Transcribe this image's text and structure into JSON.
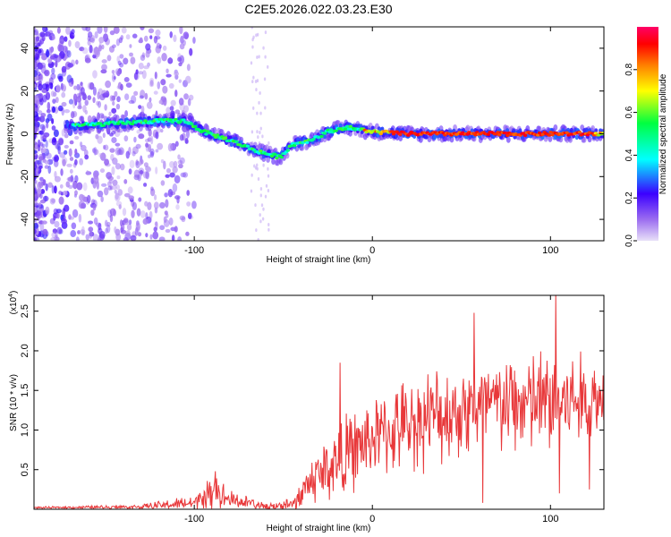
{
  "figure_title": "C2E5.2026.022.03.23.E30",
  "chart_data": [
    {
      "type": "heatmap",
      "xlabel": "Height of straight line (km)",
      "ylabel": "Frequency (Hz)",
      "xlim": [
        -190,
        130
      ],
      "ylim": [
        -50,
        50
      ],
      "x_ticks": [
        -100,
        0,
        100
      ],
      "y_ticks": [
        -40,
        -20,
        0,
        20,
        40
      ],
      "colorbar": {
        "label": "Normalized spectral amplitude",
        "range": [
          0,
          1
        ],
        "ticks": [
          "0.0",
          "0.2",
          "0.4",
          "0.6",
          "0.8"
        ],
        "tick_values": [
          0.0,
          0.2,
          0.4,
          0.6,
          0.8
        ],
        "colors": [
          "#e8e0f8",
          "#9b6cf0",
          "#3b00ff",
          "#00ffff",
          "#00ff40",
          "#ffff00",
          "#ff8000",
          "#ff0000",
          "#ff0066"
        ]
      },
      "ridge": {
        "points": [
          {
            "x": -165,
            "y": 4
          },
          {
            "x": -140,
            "y": 5
          },
          {
            "x": -120,
            "y": 6
          },
          {
            "x": -105,
            "y": 6
          },
          {
            "x": -95,
            "y": 1
          },
          {
            "x": -80,
            "y": -3
          },
          {
            "x": -65,
            "y": -8
          },
          {
            "x": -52,
            "y": -11
          },
          {
            "x": -45,
            "y": -5
          },
          {
            "x": -35,
            "y": -3
          },
          {
            "x": -25,
            "y": 1
          },
          {
            "x": -15,
            "y": 3
          },
          {
            "x": 0,
            "y": 1
          },
          {
            "x": 20,
            "y": 0
          },
          {
            "x": 60,
            "y": 0
          },
          {
            "x": 100,
            "y": 0
          },
          {
            "x": 130,
            "y": 0
          }
        ],
        "peak_range": [
          10,
          125
        ],
        "peak_amplitude": 0.95
      }
    },
    {
      "type": "line",
      "xlabel": "Height of straight line (km)",
      "ylabel": "SNR (10 * v/v)",
      "y_scale_label": "(x10",
      "y_scale_exp": "4",
      "y_scale_suffix": ")",
      "xlim": [
        -190,
        130
      ],
      "ylim": [
        0,
        2.7
      ],
      "x_ticks": [
        -100,
        0,
        100
      ],
      "y_ticks": [
        "0.5",
        "1.0",
        "1.5",
        "2.0",
        "2.5"
      ],
      "y_tick_values": [
        0.5,
        1.0,
        1.5,
        2.0,
        2.5
      ],
      "color": "#e8383a",
      "envelope": [
        {
          "x": -190,
          "base": 0.02,
          "amp": 0.01
        },
        {
          "x": -130,
          "base": 0.03,
          "amp": 0.03
        },
        {
          "x": -100,
          "base": 0.08,
          "amp": 0.1
        },
        {
          "x": -88,
          "base": 0.2,
          "amp": 0.25
        },
        {
          "x": -80,
          "base": 0.12,
          "amp": 0.12
        },
        {
          "x": -60,
          "base": 0.04,
          "amp": 0.05
        },
        {
          "x": -45,
          "base": 0.05,
          "amp": 0.1
        },
        {
          "x": -35,
          "base": 0.35,
          "amp": 0.3
        },
        {
          "x": -20,
          "base": 0.6,
          "amp": 0.5
        },
        {
          "x": 0,
          "base": 0.9,
          "amp": 0.5
        },
        {
          "x": 30,
          "base": 1.15,
          "amp": 0.6
        },
        {
          "x": 60,
          "base": 1.3,
          "amp": 0.6
        },
        {
          "x": 100,
          "base": 1.35,
          "amp": 0.7
        },
        {
          "x": 130,
          "base": 1.4,
          "amp": 0.5
        }
      ],
      "spikes": [
        {
          "x": -88,
          "y": 0.48
        },
        {
          "x": -18,
          "y": 1.85
        },
        {
          "x": 57,
          "y": 2.48
        },
        {
          "x": 62,
          "y": 0.08
        },
        {
          "x": 103,
          "y": 2.72
        },
        {
          "x": 105,
          "y": 0.2
        },
        {
          "x": 122,
          "y": 0.25
        }
      ]
    }
  ]
}
